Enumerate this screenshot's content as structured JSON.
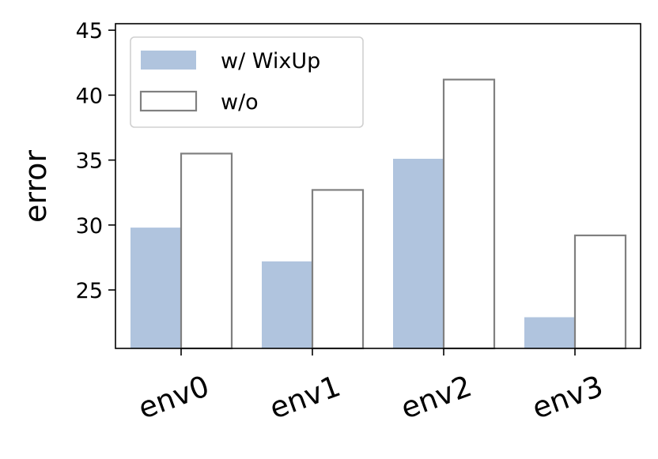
{
  "chart_data": {
    "type": "bar",
    "categories": [
      "env0",
      "env1",
      "env2",
      "env3"
    ],
    "series": [
      {
        "name": "w/ WixUp",
        "values": [
          29.8,
          27.2,
          35.1,
          22.9
        ],
        "style": "filled",
        "color": "#b0c4de"
      },
      {
        "name": "w/o",
        "values": [
          35.5,
          32.7,
          41.2,
          29.2
        ],
        "style": "outline",
        "color": "#808080"
      }
    ],
    "ylabel": "error",
    "xlabel": "",
    "ylim": [
      20.5,
      45.5
    ],
    "yticks": [
      25,
      30,
      35,
      40,
      45
    ],
    "grid": false,
    "legend": "top-left",
    "xtick_rotation_deg": -20
  }
}
